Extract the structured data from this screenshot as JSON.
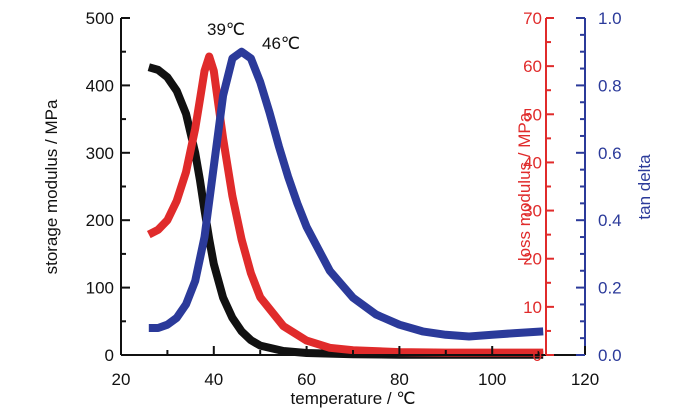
{
  "chart_data": {
    "type": "line",
    "xlabel": "temperature / ℃",
    "xlim": [
      20,
      120
    ],
    "x_ticks": [
      "20",
      "40",
      "60",
      "80",
      "100",
      "120"
    ],
    "y_axes": {
      "storage": {
        "label": "storage modulus / MPa",
        "lim": [
          0,
          500
        ],
        "ticks": [
          "0",
          "100",
          "200",
          "300",
          "400",
          "500"
        ],
        "color": "#111111"
      },
      "loss": {
        "label": "loss modulus / MPa",
        "lim": [
          0,
          70
        ],
        "ticks": [
          "0",
          "10",
          "20",
          "30",
          "40",
          "50",
          "60",
          "70"
        ],
        "color": "#e02b2b"
      },
      "tan": {
        "label": "tan delta",
        "lim": [
          0,
          1.0
        ],
        "ticks": [
          "0.0",
          "0.2",
          "0.4",
          "0.6",
          "0.8",
          "1.0"
        ],
        "color": "#2b3a9a"
      }
    },
    "series": [
      {
        "axis": "storage",
        "color": "#111111",
        "x": [
          26,
          28,
          30,
          32,
          34,
          36,
          37,
          38,
          39,
          40,
          42,
          44,
          46,
          48,
          50,
          55,
          60,
          70,
          80,
          90,
          100,
          111
        ],
        "y": [
          427,
          423,
          412,
          392,
          358,
          300,
          260,
          215,
          172,
          135,
          85,
          55,
          35,
          22,
          14,
          6,
          3,
          1,
          0.5,
          0.5,
          0.5,
          0.5
        ]
      },
      {
        "axis": "loss",
        "color": "#e02b2b",
        "x": [
          26,
          28,
          30,
          32,
          34,
          36,
          37,
          38,
          39,
          40,
          41,
          42,
          44,
          46,
          48,
          50,
          55,
          60,
          65,
          70,
          80,
          90,
          100,
          111
        ],
        "y": [
          25,
          26,
          28,
          32,
          38,
          47,
          53,
          59,
          62,
          59,
          52,
          45,
          33,
          24,
          17,
          12,
          6,
          3,
          1.5,
          1,
          0.6,
          0.5,
          0.5,
          0.5
        ]
      },
      {
        "axis": "tan",
        "color": "#2b3a9a",
        "x": [
          26,
          28,
          30,
          32,
          34,
          36,
          38,
          40,
          42,
          44,
          46,
          48,
          50,
          52,
          54,
          56,
          58,
          60,
          65,
          70,
          75,
          80,
          85,
          90,
          95,
          100,
          105,
          111
        ],
        "y": [
          0.08,
          0.08,
          0.09,
          0.11,
          0.15,
          0.22,
          0.35,
          0.56,
          0.77,
          0.88,
          0.9,
          0.88,
          0.81,
          0.72,
          0.62,
          0.53,
          0.45,
          0.38,
          0.25,
          0.17,
          0.12,
          0.09,
          0.07,
          0.06,
          0.055,
          0.06,
          0.065,
          0.07
        ]
      }
    ],
    "annotations": [
      "39℃",
      "46℃"
    ]
  }
}
